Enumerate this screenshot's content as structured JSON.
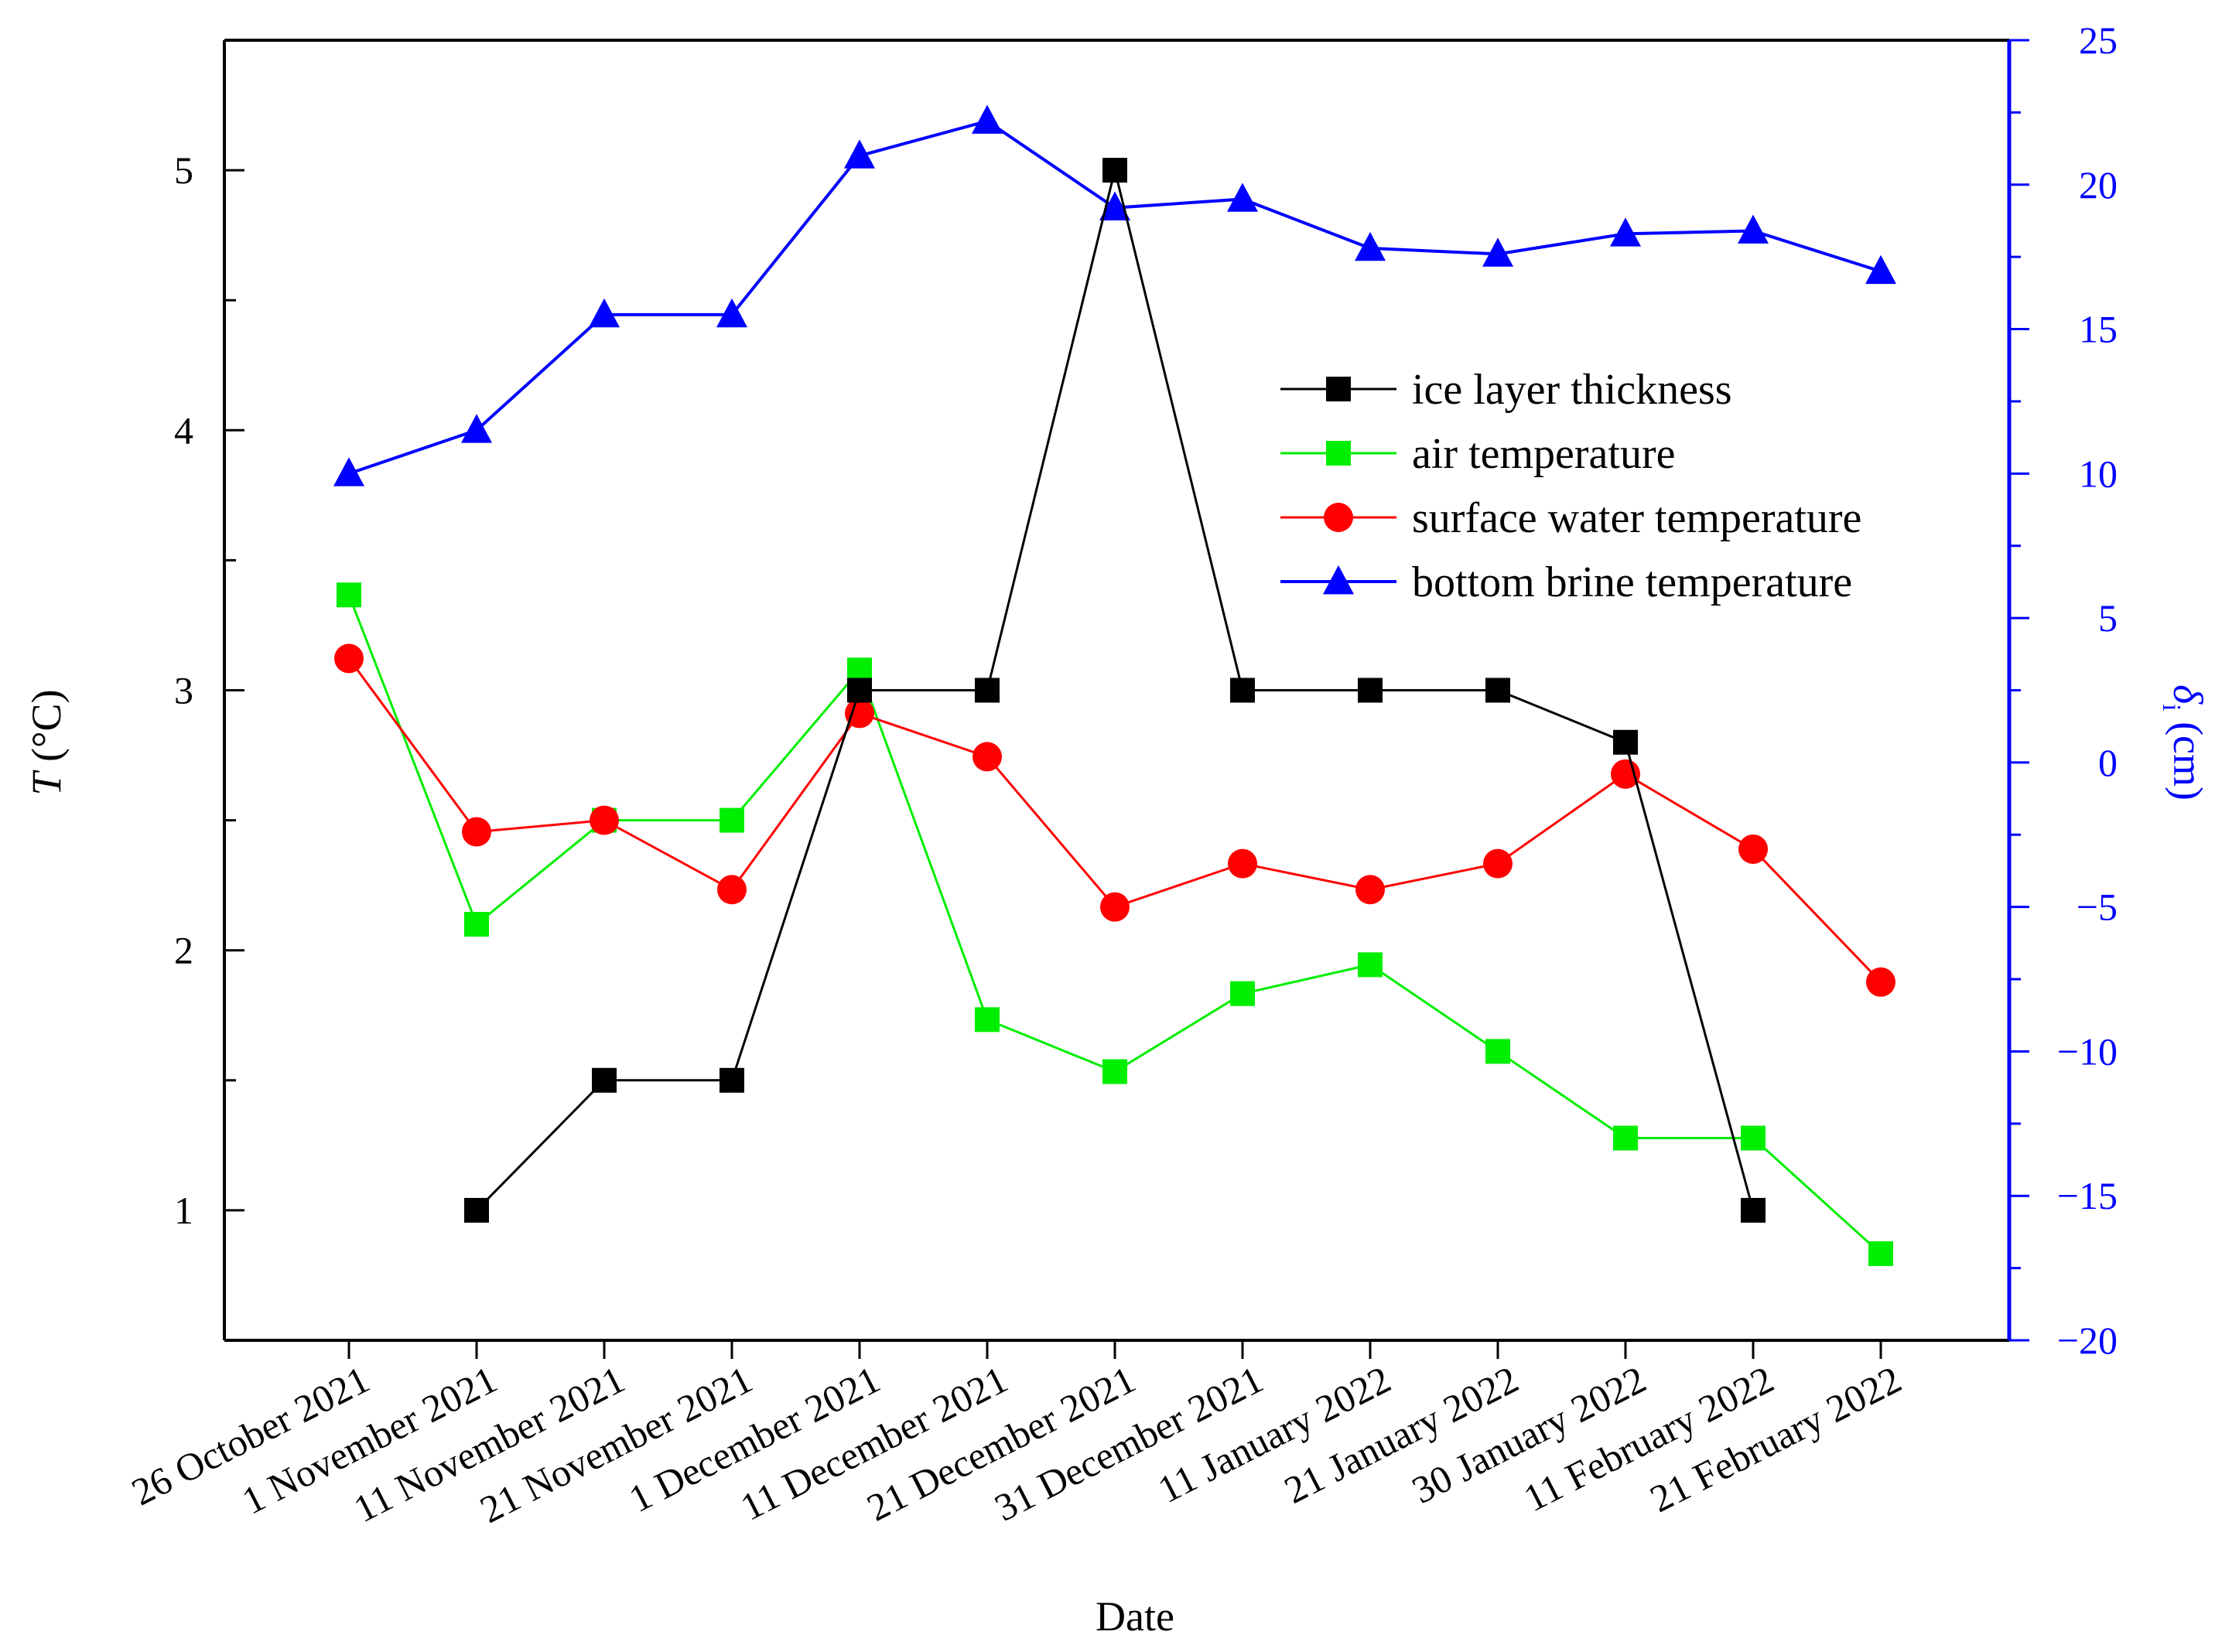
{
  "chart_data": {
    "type": "line",
    "title": "",
    "xlabel": "Date",
    "ylabel_left": {
      "symbol": "T",
      "unit": " (°C)"
    },
    "ylabel_right": {
      "symbol": "δ",
      "subscript": "i",
      "unit": " (cm)"
    },
    "ylim_left": [
      0.5,
      5.5
    ],
    "ylim_right": [
      -20,
      25
    ],
    "yticks_left": [
      1,
      2,
      3,
      4,
      5
    ],
    "yticks_right": [
      -20,
      -15,
      -10,
      -5,
      0,
      5,
      10,
      15,
      20,
      25
    ],
    "yticklabels_right": [
      "−20",
      "−15",
      "−10",
      "−5",
      "0",
      "5",
      "10",
      "15",
      "20",
      "25"
    ],
    "categories": [
      "26 October 2021",
      "1 November 2021",
      "11 November 2021",
      "21 November 2021",
      "1 December 2021",
      "11 December 2021",
      "21 December 2021",
      "31 December 2021",
      "11 January 2022",
      "21 January 2022",
      "30 January 2022",
      "11 February 2022",
      "21 February 2022"
    ],
    "legend_position": "upper-right",
    "series": [
      {
        "name": "ice layer thickness",
        "axis": "left",
        "marker": "square",
        "color": "#000000",
        "values": [
          null,
          1.0,
          1.5,
          1.5,
          3.0,
          3.0,
          5.0,
          3.0,
          3.0,
          3.0,
          2.8,
          1.0,
          null
        ]
      },
      {
        "name": "air temperature",
        "axis": "right",
        "marker": "square",
        "color": "#00ee00",
        "values": [
          5.8,
          -5.6,
          -2.0,
          -2.0,
          3.2,
          -8.9,
          -10.7,
          -8.0,
          -7.0,
          -10.0,
          -13.0,
          -13.0,
          -17.0
        ]
      },
      {
        "name": "surface water temperature",
        "axis": "right",
        "marker": "circle",
        "color": "#ff0000",
        "values": [
          3.6,
          -2.4,
          -2.0,
          -4.4,
          1.7,
          0.2,
          -5.0,
          -3.5,
          -4.4,
          -3.5,
          -0.4,
          -3.0,
          -7.6
        ]
      },
      {
        "name": "bottom brine temperature",
        "axis": "right",
        "marker": "triangle",
        "color": "#0000ff",
        "values": [
          10.0,
          11.5,
          15.5,
          15.5,
          21.0,
          22.2,
          19.2,
          19.5,
          17.8,
          17.6,
          18.3,
          18.4,
          17.0
        ]
      }
    ]
  },
  "colors": {
    "axis_left": "#000000",
    "axis_right": "#0000ff"
  }
}
